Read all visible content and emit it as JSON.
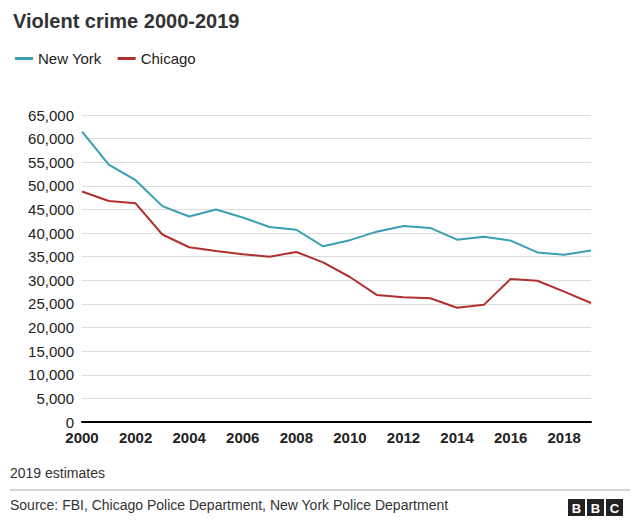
{
  "chart_data": {
    "type": "line",
    "title": "Violent crime 2000-2019",
    "note": "2019 estimates",
    "source": "Source: FBI, Chicago Police Department, New York Police Department",
    "logo": "BBC",
    "x": [
      2000,
      2001,
      2002,
      2003,
      2004,
      2005,
      2006,
      2007,
      2008,
      2009,
      2010,
      2011,
      2012,
      2013,
      2014,
      2015,
      2016,
      2017,
      2018,
      2019
    ],
    "series": [
      {
        "name": "New York",
        "color": "#3a9fb3",
        "values": [
          61500,
          54500,
          51200,
          45700,
          43500,
          45000,
          43300,
          41300,
          40700,
          37200,
          38500,
          40300,
          41500,
          41100,
          38600,
          39200,
          38400,
          35900,
          35400,
          36300
        ]
      },
      {
        "name": "Chicago",
        "color": "#b0302e",
        "values": [
          48800,
          46800,
          46300,
          39700,
          37000,
          36200,
          35500,
          35000,
          36000,
          33800,
          30700,
          26900,
          26400,
          26200,
          24200,
          24800,
          30300,
          29900,
          27600,
          25200
        ]
      }
    ],
    "xlim": [
      2000,
      2019
    ],
    "xticks": [
      2000,
      2002,
      2004,
      2006,
      2008,
      2010,
      2012,
      2014,
      2016,
      2018
    ],
    "ylim": [
      0,
      65000
    ],
    "yticks": [
      0,
      {
        "value": 5000,
        "label": "5,000"
      },
      {
        "value": 10000,
        "label": "10,000"
      },
      {
        "value": 15000,
        "label": "15,000"
      },
      {
        "value": 20000,
        "label": "20,000"
      },
      {
        "value": 25000,
        "label": "25,000"
      },
      {
        "value": 30000,
        "label": "30,000"
      },
      {
        "value": 35000,
        "label": "35,000"
      },
      {
        "value": 40000,
        "label": "40,000"
      },
      {
        "value": 45000,
        "label": "45,000"
      },
      {
        "value": 50000,
        "label": "50,000"
      },
      {
        "value": 55000,
        "label": "55,000"
      },
      {
        "value": 60000,
        "label": "60,000"
      },
      {
        "value": 65000,
        "label": "65,000"
      }
    ],
    "grid": true,
    "legend": "top-left"
  }
}
